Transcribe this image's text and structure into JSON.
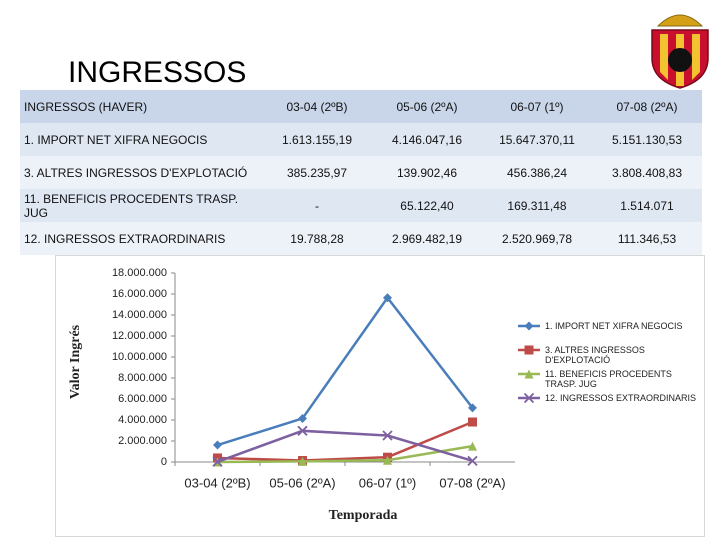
{
  "header": {
    "title": "INGRESSOS"
  },
  "table": {
    "rows": [
      [
        "INGRESSOS (HAVER)",
        "03-04 (2ºB)",
        "05-06 (2ºA)",
        "06-07 (1º)",
        "07-08 (2ºA)"
      ],
      [
        "1. IMPORT NET XIFRA NEGOCIS",
        "1.613.155,19",
        "4.146.047,16",
        "15.647.370,11",
        "5.151.130,53"
      ],
      [
        "3. ALTRES INGRESSOS D'EXPLOTACIÓ",
        "385.235,97",
        "139.902,46",
        "456.386,24",
        "3.808.408,83"
      ],
      [
        "11. BENEFICIS PROCEDENTS TRASP. JUG",
        "-",
        "65.122,40",
        "169.311,48",
        "1.514.071"
      ],
      [
        "12. INGRESSOS EXTRAORDINARIS",
        "19.788,28",
        "2.969.482,19",
        "2.520.969,78",
        "111.346,53"
      ]
    ]
  },
  "chart_data": {
    "type": "line",
    "x_label": "Temporada",
    "y_label": "Valor Ingrés",
    "categories": [
      "03-04 (2ºB)",
      "05-06 (2ºA)",
      "06-07 (1º)",
      "07-08 (2ºA)"
    ],
    "series": [
      {
        "name": "1. IMPORT NET XIFRA NEGOCIS",
        "color": "#4a7ebb",
        "marker": "diamond",
        "values": [
          1613155.19,
          4146047.16,
          15647370.11,
          5151130.53
        ]
      },
      {
        "name": "3. ALTRES INGRESSOS D'EXPLOTACIÓ",
        "color": "#be4b48",
        "marker": "square",
        "values": [
          385235.97,
          139902.46,
          456386.24,
          3808408.83
        ]
      },
      {
        "name": "11. BENEFICIS PROCEDENTS TRASP. JUG",
        "color": "#98b954",
        "marker": "triangle",
        "values": [
          0,
          65122.4,
          169311.48,
          1514071
        ]
      },
      {
        "name": "12. INGRESSOS EXTRAORDINARIS",
        "color": "#7d60a0",
        "marker": "x",
        "values": [
          19788.28,
          2969482.19,
          2520969.78,
          111346.53
        ]
      }
    ],
    "ylim": [
      0,
      18000000
    ],
    "yticks": [
      0,
      {
        "value": 2000000,
        "label": "2.000.000"
      },
      {
        "value": 4000000,
        "label": "4.000.000"
      },
      {
        "value": 6000000,
        "label": "6.000.000"
      },
      {
        "value": 8000000,
        "label": "8.000.000"
      },
      {
        "value": 10000000,
        "label": "10.000.000"
      },
      {
        "value": 12000000,
        "label": "12.000.000"
      },
      {
        "value": 14000000,
        "label": "14.000.000"
      },
      {
        "value": 16000000,
        "label": "16.000.000"
      },
      {
        "value": 18000000,
        "label": "18.000.000"
      }
    ],
    "grid": false,
    "legend": "right"
  }
}
